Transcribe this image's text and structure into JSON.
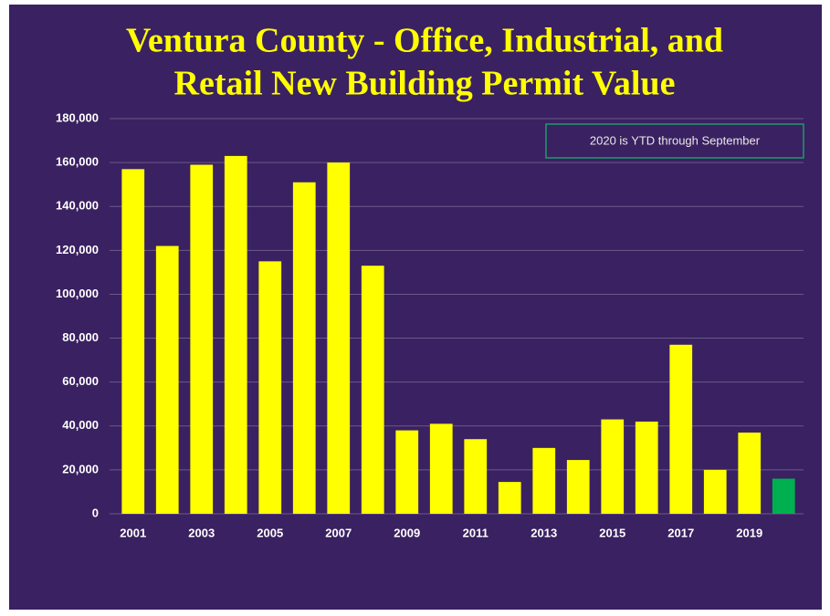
{
  "chart_data": {
    "type": "bar",
    "title": [
      "Ventura County - Office, Industrial, and",
      "Retail New Building Permit Value"
    ],
    "annotation": "2020 is YTD through September",
    "categories": [
      "2001",
      null,
      "2003",
      null,
      "2005",
      null,
      "2007",
      null,
      "2009",
      null,
      "2011",
      null,
      "2013",
      null,
      "2015",
      null,
      "2017",
      null,
      "2019",
      null
    ],
    "values": [
      157000,
      122000,
      159000,
      163000,
      115000,
      151000,
      160000,
      113000,
      38000,
      41000,
      34000,
      14500,
      30000,
      24500,
      43000,
      42000,
      77000,
      20000,
      37000,
      16000
    ],
    "colors": [
      "#ffff00",
      "#ffff00",
      "#ffff00",
      "#ffff00",
      "#ffff00",
      "#ffff00",
      "#ffff00",
      "#ffff00",
      "#ffff00",
      "#ffff00",
      "#ffff00",
      "#ffff00",
      "#ffff00",
      "#ffff00",
      "#ffff00",
      "#ffff00",
      "#ffff00",
      "#ffff00",
      "#ffff00",
      "#00b050"
    ],
    "ylim": [
      0,
      180000
    ],
    "yticks": [
      0,
      {
        "value": 20000,
        "label": "20,000"
      },
      {
        "value": 40000,
        "label": "40,000"
      },
      {
        "value": 60000,
        "label": "60,000"
      },
      {
        "value": 80000,
        "label": "80,000"
      },
      {
        "value": 100000,
        "label": "100,000"
      },
      {
        "value": 120000,
        "label": "120,000"
      },
      {
        "value": 140000,
        "label": "140,000"
      },
      {
        "value": 160000,
        "label": "160,000"
      },
      {
        "value": 180000,
        "label": "180,000"
      }
    ],
    "grid": true
  }
}
